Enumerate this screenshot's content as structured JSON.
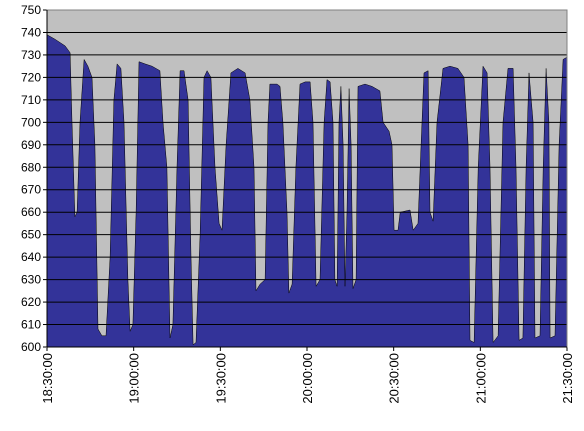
{
  "chart_data": {
    "type": "area",
    "color": "#333399",
    "plot_background": "#c0c0c0",
    "grid": true,
    "x": [
      "18:30:00",
      "18:32:45",
      "18:36:15",
      "18:38:00",
      "18:38:40",
      "18:39:40",
      "18:40:25",
      "18:41:25",
      "18:42:50",
      "18:44:10",
      "18:45:35",
      "18:46:35",
      "18:47:40",
      "18:49:00",
      "18:50:25",
      "18:51:50",
      "18:53:10",
      "18:54:15",
      "18:55:35",
      "18:56:40",
      "18:58:00",
      "18:58:45",
      "18:59:45",
      "19:00:50",
      "19:01:50",
      "19:03:55",
      "19:06:20",
      "19:09:05",
      "19:10:10",
      "19:11:30",
      "19:12:35",
      "19:13:35",
      "19:15:00",
      "19:16:05",
      "19:17:25",
      "19:18:50",
      "19:19:50",
      "19:20:35",
      "19:21:35",
      "19:23:00",
      "19:24:20",
      "19:25:25",
      "19:26:45",
      "19:28:10",
      "19:29:35",
      "19:30:35",
      "19:32:00",
      "19:33:40",
      "19:36:05",
      "19:38:35",
      "19:40:15",
      "19:41:40",
      "19:42:20",
      "19:43:45",
      "19:45:30",
      "19:46:30",
      "19:47:10",
      "19:49:40",
      "19:50:40",
      "19:51:40",
      "19:53:05",
      "19:53:45",
      "19:54:50",
      "19:56:10",
      "19:57:35",
      "19:59:20",
      "20:01:05",
      "20:02:05",
      "20:03:10",
      "20:04:30",
      "20:05:55",
      "20:06:55",
      "20:08:00",
      "20:09:00",
      "20:09:40",
      "20:10:25",
      "20:11:05",
      "20:11:45",
      "20:12:30",
      "20:13:10",
      "20:13:50",
      "20:14:35",
      "20:15:15",
      "20:15:55",
      "20:17:00",
      "20:17:40",
      "20:20:05",
      "20:22:30",
      "20:25:15",
      "20:26:20",
      "20:28:25",
      "20:29:25",
      "20:30:10",
      "20:31:30",
      "20:32:15",
      "20:35:40",
      "20:36:45",
      "20:38:25",
      "20:39:30",
      "20:40:30",
      "20:41:55",
      "20:42:35",
      "20:43:40",
      "20:45:00",
      "20:47:05",
      "20:49:30",
      "20:52:15",
      "20:54:20",
      "20:55:45",
      "20:56:25",
      "20:57:50",
      "20:59:15",
      "21:00:55",
      "21:02:20",
      "21:03:20",
      "21:04:25",
      "21:06:10",
      "21:07:50",
      "21:09:35",
      "21:11:20",
      "21:12:20",
      "21:13:25",
      "21:14:45",
      "21:15:50",
      "21:16:50",
      "21:18:15",
      "21:18:55",
      "21:20:40",
      "21:21:45",
      "21:22:45",
      "21:23:45",
      "21:24:10",
      "21:25:50",
      "21:27:15",
      "21:28:40",
      "21:30:00"
    ],
    "values": [
      739,
      737,
      734,
      731,
      700,
      658,
      660,
      700,
      728,
      725,
      720,
      690,
      608,
      605,
      605,
      640,
      710,
      726,
      724,
      700,
      630,
      607,
      610,
      660,
      727,
      726,
      725,
      723,
      700,
      680,
      604,
      610,
      680,
      723,
      723,
      710,
      640,
      601,
      602,
      650,
      720,
      723,
      720,
      680,
      655,
      652,
      690,
      722,
      724,
      722,
      710,
      680,
      625,
      628,
      630,
      700,
      717,
      717,
      716,
      700,
      660,
      624,
      628,
      680,
      717,
      718,
      718,
      700,
      627,
      630,
      700,
      719,
      718,
      700,
      630,
      627,
      700,
      716,
      690,
      627,
      660,
      715,
      690,
      626,
      630,
      716,
      717,
      716,
      714,
      700,
      696,
      690,
      652,
      652,
      660,
      661,
      652,
      655,
      690,
      722,
      723,
      660,
      656,
      700,
      724,
      725,
      724,
      720,
      690,
      603,
      602,
      680,
      725,
      722,
      680,
      602,
      605,
      700,
      724,
      724,
      680,
      603,
      604,
      680,
      722,
      700,
      604,
      605,
      680,
      724,
      700,
      604,
      605,
      690,
      728,
      729
    ],
    "xlim": [
      "18:30:00",
      "21:30:00"
    ],
    "xticks": [
      "18:30:00",
      "19:00:00",
      "19:30:00",
      "20:00:00",
      "20:30:00",
      "21:00:00",
      "21:30:00"
    ],
    "ylim": [
      600,
      750
    ],
    "yticks": [
      600,
      610,
      620,
      630,
      640,
      650,
      660,
      670,
      680,
      690,
      700,
      710,
      720,
      730,
      740,
      750
    ]
  }
}
